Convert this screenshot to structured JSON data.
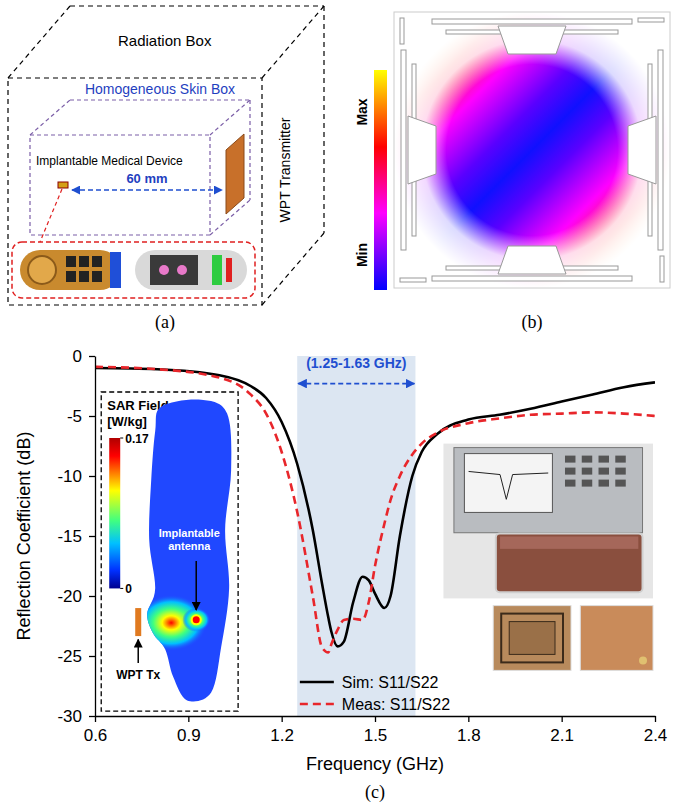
{
  "chart_data": {
    "type": "line",
    "x_label": "Frequency (GHz)",
    "y_label": "Reflection Coefficient (dB)",
    "x": [
      0.6,
      0.8,
      1.0,
      1.1,
      1.15,
      1.2,
      1.25,
      1.3,
      1.33,
      1.35,
      1.36,
      1.38,
      1.4,
      1.43,
      1.46,
      1.48,
      1.5,
      1.53,
      1.55,
      1.58,
      1.62,
      1.65,
      1.7,
      1.8,
      1.9,
      2.0,
      2.1,
      2.2,
      2.3,
      2.4
    ],
    "series": [
      {
        "name": "Sim: S11/S22",
        "color": "#000000",
        "line_style": "solid",
        "values": [
          -1.0,
          -1.1,
          -1.6,
          -2.5,
          -3.5,
          -5.5,
          -9,
          -14.5,
          -19,
          -21.8,
          -23,
          -24.2,
          -23.8,
          -20.5,
          -18.4,
          -18.7,
          -19.8,
          -21,
          -20,
          -15,
          -10,
          -8,
          -6.5,
          -5.3,
          -4.9,
          -4.4,
          -3.8,
          -3.2,
          -2.6,
          -2.2
        ]
      },
      {
        "name": "Meas: S11/S22",
        "color": "#e8262b",
        "line_style": "dashed",
        "values": [
          -0.9,
          -1.1,
          -1.8,
          -3.2,
          -4.8,
          -8,
          -13,
          -20,
          -24.3,
          -24.7,
          -24,
          -22.8,
          -22,
          -21.9,
          -22,
          -20.5,
          -17.5,
          -14,
          -12,
          -10,
          -8.2,
          -7.3,
          -6.4,
          -5.6,
          -5.2,
          -4.9,
          -4.8,
          -4.7,
          -4.8,
          -5.0
        ]
      }
    ],
    "xlim": [
      0.6,
      2.4
    ],
    "xticks": [
      0.6,
      0.9,
      1.2,
      1.5,
      1.8,
      2.1,
      2.4
    ],
    "ylim": [
      -30,
      0
    ],
    "yticks": [
      -30,
      -25,
      -20,
      -15,
      -10,
      -5,
      0
    ],
    "grid": false,
    "legend": "lower center",
    "band": {
      "range": [
        1.25,
        1.63
      ],
      "label": "(1.25-1.63 GHz)"
    },
    "inset": {
      "title": "SAR Field",
      "unit": "[W/kg]",
      "colorbar_range": [
        0,
        0.17
      ],
      "colorbar_ticks": [
        0.17,
        0
      ],
      "antenna_label": "Implantable antenna",
      "transmitter_label": "WPT Tx"
    }
  },
  "diagram": {
    "panel_a": {
      "caption": "(a)",
      "outer_box": "Radiation Box",
      "inner_box": "Homogeneous Skin Box",
      "device": "Implantable Medical Device",
      "distance": "60 mm",
      "transmitter": "WPT Transmitter"
    },
    "panel_b": {
      "caption": "(b)",
      "colorbar_max": "Max",
      "colorbar_min": "Min"
    },
    "panel_c": {
      "caption": "(c)"
    }
  }
}
